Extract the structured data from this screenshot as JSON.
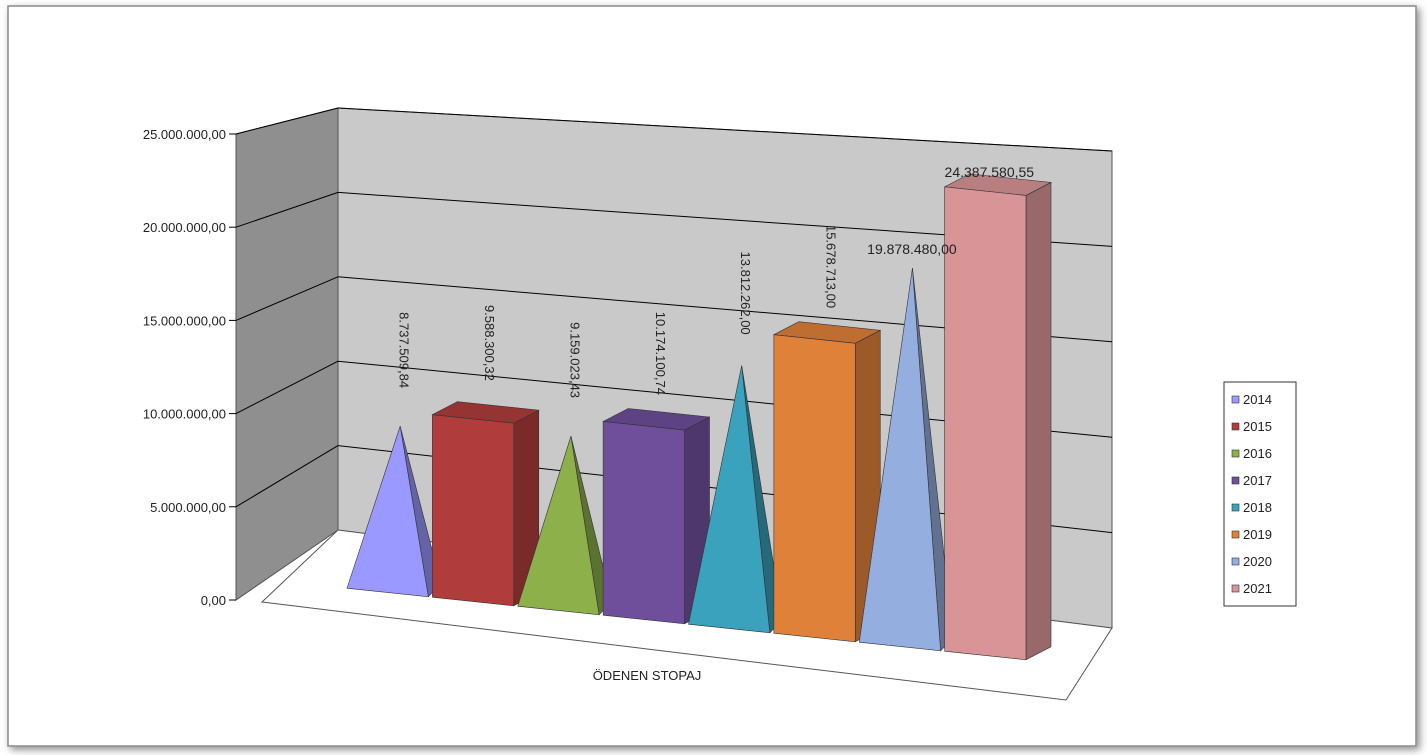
{
  "chart_data": {
    "type": "bar",
    "subtype": "3d-column-and-pyramid",
    "title": "",
    "xlabel": "",
    "ylabel": "",
    "categories": [
      "ÖDENEN STOPAJ"
    ],
    "category_label": "ÖDENEN STOPAJ",
    "ylim": [
      0,
      25000000
    ],
    "y_ticks": [
      {
        "value": 0,
        "label": "0,00"
      },
      {
        "value": 5000000,
        "label": "5.000.000,00"
      },
      {
        "value": 10000000,
        "label": "10.000.000,00"
      },
      {
        "value": 15000000,
        "label": "15.000.000,00"
      },
      {
        "value": 20000000,
        "label": "20.000.000,00"
      },
      {
        "value": 25000000,
        "label": "25.000.000,00"
      }
    ],
    "grid": true,
    "legend_position": "right",
    "series": [
      {
        "name": "2014",
        "value": 8737509.84,
        "label": "8.737.509,84",
        "shape": "pyramid",
        "color": "#9999ff"
      },
      {
        "name": "2015",
        "value": 9588300.32,
        "label": "9.588.300,32",
        "shape": "box",
        "color": "#b03c3c"
      },
      {
        "name": "2016",
        "value": 9159023.43,
        "label": "9.159.023,43",
        "shape": "pyramid",
        "color": "#8db04a"
      },
      {
        "name": "2017",
        "value": 10174100.74,
        "label": "10.174.100,74",
        "shape": "box",
        "color": "#6f4f9b"
      },
      {
        "name": "2018",
        "value": 13812262.0,
        "label": "13.812.262,00",
        "shape": "pyramid",
        "color": "#3aa2bd"
      },
      {
        "name": "2019",
        "value": 15678713.0,
        "label": "15.678.713,00",
        "shape": "box",
        "color": "#e0813a"
      },
      {
        "name": "2020",
        "value": 19878480.0,
        "label": "19.878.480,00",
        "shape": "pyramid",
        "color": "#94aee0"
      },
      {
        "name": "2021",
        "value": 24387580.55,
        "label": "24.387.580,55",
        "shape": "box",
        "color": "#d99497"
      }
    ]
  }
}
